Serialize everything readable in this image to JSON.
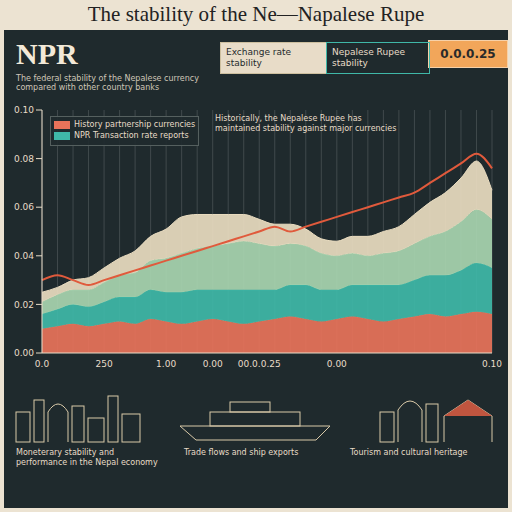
{
  "chart_data": {
    "type": "area",
    "title": "The stability of the Ne—Napalese Rupe",
    "subtitle": "The federal stability of the Nepalese currency compared with other country banks",
    "stacked": true,
    "grid": true,
    "legend": "upper left",
    "categories": [
      "0.0",
      null,
      null,
      null,
      "250",
      null,
      null,
      null,
      "1.00",
      null,
      null,
      "0.00",
      null,
      null,
      "00.0.0.25",
      null,
      null,
      null,
      null,
      "0.00",
      null,
      null,
      null,
      null,
      null,
      null,
      null,
      null,
      null,
      "0.10"
    ],
    "ylim": [
      0,
      0.1
    ],
    "yticks": [
      {
        "value": 0,
        "label": "0.00"
      },
      0.02,
      0.04,
      0.06,
      0.08,
      {
        "value": 0.1,
        "label": "0.10"
      }
    ],
    "series": [
      {
        "name": "History partnership currencies",
        "color": "#e8735a",
        "values": [
          0.01,
          0.011,
          0.012,
          0.011,
          0.012,
          0.013,
          0.012,
          0.014,
          0.013,
          0.012,
          0.013,
          0.014,
          0.013,
          0.012,
          0.013,
          0.014,
          0.015,
          0.014,
          0.013,
          0.014,
          0.015,
          0.014,
          0.013,
          0.014,
          0.015,
          0.016,
          0.015,
          0.016,
          0.017,
          0.016
        ]
      },
      {
        "name": "NPR Transaction rate reports",
        "color": "#3fb8a8",
        "values": [
          0.006,
          0.007,
          0.008,
          0.008,
          0.009,
          0.01,
          0.011,
          0.012,
          0.012,
          0.013,
          0.013,
          0.012,
          0.013,
          0.014,
          0.013,
          0.012,
          0.013,
          0.014,
          0.013,
          0.012,
          0.013,
          0.014,
          0.015,
          0.014,
          0.015,
          0.016,
          0.017,
          0.018,
          0.02,
          0.019
        ]
      },
      {
        "color": "#a8d5b0",
        "values": [
          0.005,
          0.006,
          0.006,
          0.007,
          0.008,
          0.009,
          0.01,
          0.012,
          0.014,
          0.016,
          0.017,
          0.018,
          0.019,
          0.02,
          0.019,
          0.018,
          0.017,
          0.016,
          0.015,
          0.014,
          0.013,
          0.012,
          0.013,
          0.014,
          0.015,
          0.016,
          0.018,
          0.02,
          0.022,
          0.02
        ]
      },
      {
        "color": "#e9dcc0",
        "values": [
          0.004,
          0.003,
          0.004,
          0.005,
          0.006,
          0.007,
          0.009,
          0.01,
          0.012,
          0.015,
          0.014,
          0.013,
          0.012,
          0.011,
          0.01,
          0.009,
          0.008,
          0.007,
          0.006,
          0.006,
          0.007,
          0.008,
          0.009,
          0.01,
          0.012,
          0.014,
          0.016,
          0.018,
          0.02,
          0.012
        ]
      },
      {
        "type": "line",
        "color": "#e05a3c",
        "values": [
          0.03,
          0.032,
          0.03,
          0.028,
          0.03,
          0.032,
          0.034,
          0.036,
          0.038,
          0.04,
          0.042,
          0.044,
          0.046,
          0.048,
          0.05,
          0.052,
          0.05,
          0.052,
          0.054,
          0.056,
          0.058,
          0.06,
          0.062,
          0.064,
          0.066,
          0.07,
          0.074,
          0.078,
          0.082,
          0.076
        ]
      }
    ],
    "annotations": [
      "NPR",
      "Moneterary stability and performance in the Nepal economy",
      "0.0.0.25",
      "Exchange rate stability",
      "Nepalese Rupee stability",
      "Historically, the Nepalese Rupee has maintained stability against major currencies",
      "Trade flows and ship exports",
      "Tourism and cultural heritage"
    ]
  }
}
